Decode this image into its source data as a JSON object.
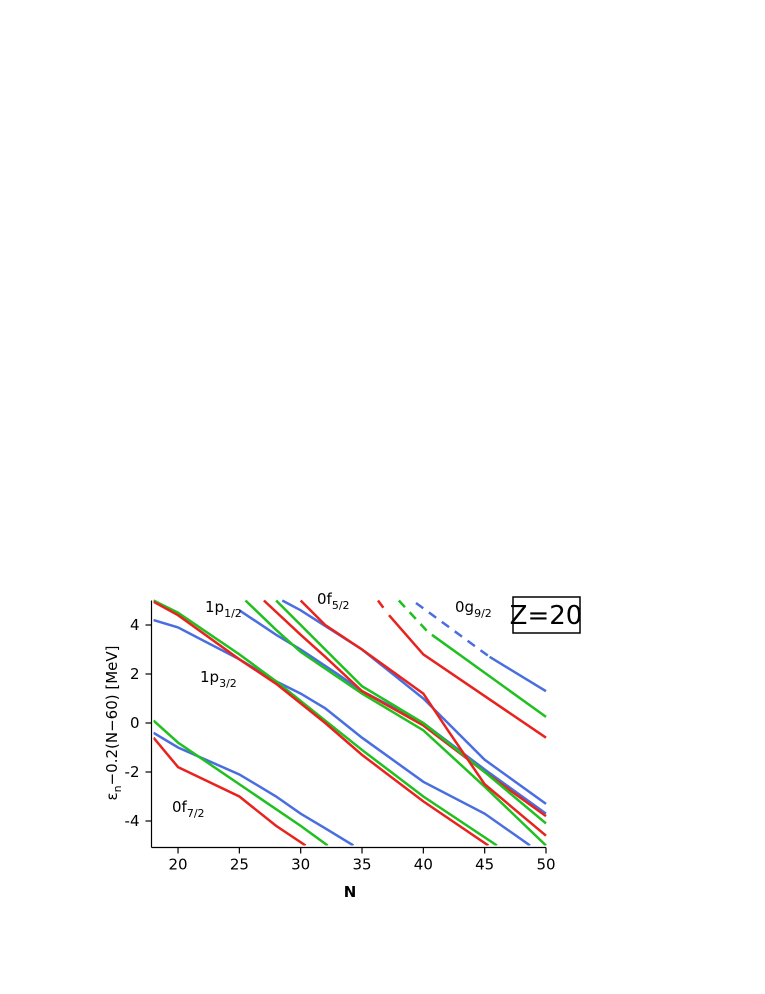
{
  "chart_data": {
    "type": "line",
    "x_label": "N",
    "y_label": {
      "text": "ε",
      "sub": "n",
      "rest": "−0.2(N−60)  [MeV]"
    },
    "box_label": "Z=20",
    "annotations": [
      {
        "text": "1p",
        "sub": "1/2"
      },
      {
        "text": "0f",
        "sub": "5/2"
      },
      {
        "text": "0g",
        "sub": "9/2"
      },
      {
        "text": "1p",
        "sub": "3/2"
      },
      {
        "text": "0f",
        "sub": "7/2"
      }
    ],
    "xlim": [
      18,
      50
    ],
    "ylim": [
      -5,
      5
    ],
    "xticks": [
      20,
      25,
      30,
      35,
      40,
      45,
      50
    ],
    "yticks": [
      -4,
      -2,
      0,
      2,
      4
    ],
    "series": [
      {
        "color": "#4a6ee0",
        "x": [
          18,
          20,
          25,
          28,
          30,
          32,
          34.3
        ],
        "values": [
          -0.4,
          -1.0,
          -2.1,
          -3.0,
          -3.7,
          -4.3,
          -5
        ]
      },
      {
        "color": "#1fc01f",
        "x": [
          18,
          20,
          25,
          30,
          32.2
        ],
        "values": [
          0.1,
          -0.8,
          -2.5,
          -4.2,
          -5
        ]
      },
      {
        "color": "#e8231e",
        "x": [
          18,
          20,
          25,
          28,
          30.4
        ],
        "values": [
          -0.6,
          -1.8,
          -3.0,
          -4.2,
          -5
        ]
      },
      {
        "color": "#4a6ee0",
        "x": [
          18,
          20,
          25,
          28,
          30,
          32,
          35,
          40,
          45,
          48.7
        ],
        "values": [
          4.2,
          3.9,
          2.6,
          1.7,
          1.2,
          0.6,
          -0.6,
          -2.4,
          -3.7,
          -5
        ]
      },
      {
        "color": "#1fc01f",
        "x": [
          18,
          20,
          25,
          28,
          30,
          32,
          35,
          40,
          46
        ],
        "values": [
          5,
          4.5,
          2.8,
          1.7,
          0.9,
          0.1,
          -1.1,
          -3,
          -5
        ]
      },
      {
        "color": "#e8231e",
        "x": [
          18,
          20,
          25,
          28,
          30,
          32,
          35,
          40,
          45.3
        ],
        "values": [
          4.95,
          4.4,
          2.6,
          1.6,
          0.8,
          0,
          -1.3,
          -3.2,
          -5
        ]
      },
      {
        "color": "#4a6ee0",
        "x": [
          25,
          28,
          30,
          33,
          35,
          40,
          45,
          50
        ],
        "values": [
          4.6,
          3.6,
          3,
          2,
          1.3,
          0,
          -1.9,
          -3.7
        ]
      },
      {
        "color": "#1fc01f",
        "x": [
          25.5,
          28,
          30,
          35,
          40,
          45,
          50
        ],
        "values": [
          5,
          3.8,
          2.9,
          1.2,
          -0.3,
          -2.6,
          -5
        ]
      },
      {
        "color": "#e8231e",
        "x": [
          27,
          30,
          32,
          35,
          40,
          45,
          50
        ],
        "values": [
          5,
          3.6,
          2.7,
          1.3,
          -0.1,
          -2,
          -3.8
        ]
      },
      {
        "color": "#1fc01f",
        "x": [
          28,
          30,
          33,
          35,
          40,
          45,
          50
        ],
        "values": [
          5,
          4,
          2.5,
          1.5,
          0,
          -2,
          -4.1
        ]
      },
      {
        "color": "#4a6ee0",
        "x": [
          28.5,
          30,
          35,
          40,
          45,
          50
        ],
        "values": [
          5,
          4.6,
          3.0,
          1,
          -1.5,
          -3.3
        ]
      },
      {
        "color": "#e8231e",
        "x": [
          30,
          32,
          35,
          40,
          42,
          45,
          50
        ],
        "values": [
          5,
          4,
          3,
          1.2,
          -0.3,
          -2.5,
          -4.6
        ]
      },
      {
        "color": "#e8231e",
        "style": "dashed",
        "x": [
          36.3,
          36.9
        ],
        "values": [
          5,
          4.6
        ]
      },
      {
        "color": "#e8231e",
        "x": [
          37.2,
          40,
          50
        ],
        "values": [
          4.4,
          2.8,
          -0.6
        ]
      },
      {
        "color": "#1fc01f",
        "style": "dashed",
        "x": [
          38,
          40.4
        ],
        "values": [
          5,
          3.7
        ]
      },
      {
        "color": "#1fc01f",
        "x": [
          40.7,
          50
        ],
        "values": [
          3.6,
          0.25
        ]
      },
      {
        "color": "#4a6ee0",
        "style": "dashed",
        "x": [
          39.4,
          45.4
        ],
        "values": [
          4.9,
          2.7
        ]
      },
      {
        "color": "#4a6ee0",
        "x": [
          45.4,
          50
        ],
        "values": [
          2.7,
          1.3
        ]
      }
    ]
  }
}
